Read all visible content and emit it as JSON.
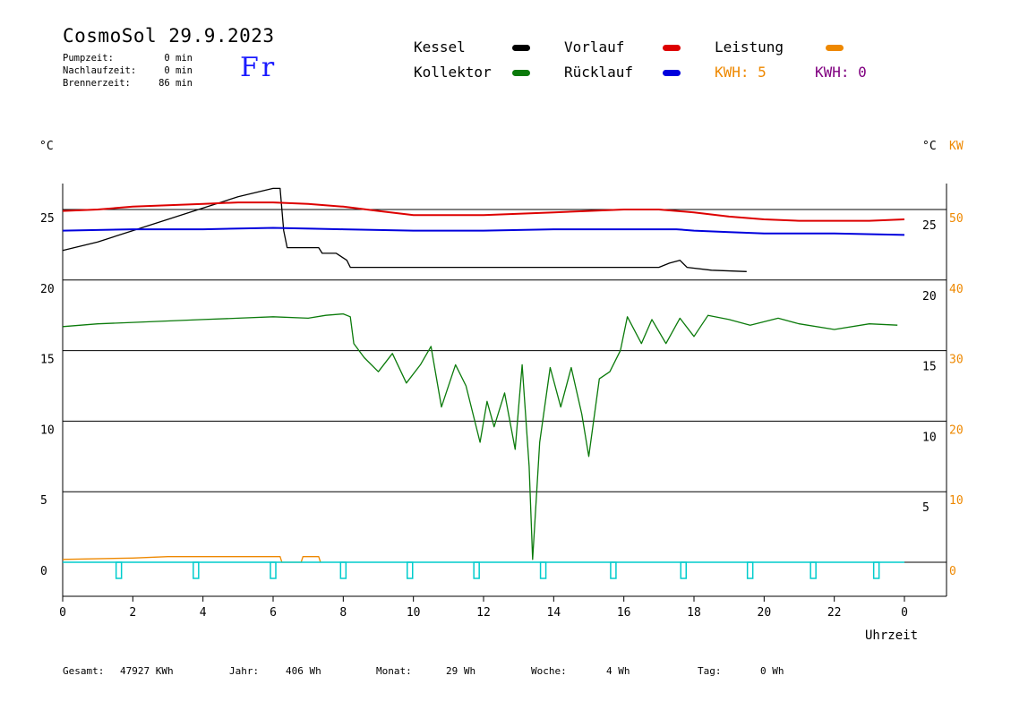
{
  "header": {
    "title": "CosmoSol 29.9.2023",
    "day": "Fr",
    "stats": [
      {
        "label": "Pumpzeit:",
        "value": "0 min"
      },
      {
        "label": "Nachlaufzeit:",
        "value": "0 min"
      },
      {
        "label": "Brennerzeit:",
        "value": "86 min"
      }
    ]
  },
  "legend": {
    "kessel": "Kessel",
    "kollektor": "Kollektor",
    "vorlauf": "Vorlauf",
    "ruecklauf": "Rücklauf",
    "leistung": "Leistung",
    "kwh1": "KWH: 5",
    "kwh2": "KWH: 0"
  },
  "colors": {
    "kessel": "#000000",
    "kollektor": "#0a7a0a",
    "vorlauf": "#dd0000",
    "ruecklauf": "#0000dd",
    "leistung": "#ee8800",
    "pump": "#00cccc",
    "kwh2": "#800080"
  },
  "axes": {
    "left_unit": "°C",
    "right_unit_c": "°C",
    "right_unit_kw": "KW",
    "xlabel": "Uhrzeit"
  },
  "footer": [
    {
      "label": "Gesamt:",
      "value": "47927 KWh"
    },
    {
      "label": "Jahr:",
      "value": "406 Wh"
    },
    {
      "label": "Monat:",
      "value": "29 Wh"
    },
    {
      "label": "Woche:",
      "value": "4 Wh"
    },
    {
      "label": "Tag:",
      "value": "0 Wh"
    }
  ],
  "chart_data": {
    "type": "line",
    "xlim": [
      0,
      24
    ],
    "ylim": [
      -2,
      27
    ],
    "x_ticks": [
      "0",
      "2",
      "4",
      "6",
      "8",
      "10",
      "12",
      "14",
      "16",
      "18",
      "20",
      "22",
      "0"
    ],
    "y_ticks_left": [
      "0",
      "5",
      "10",
      "15",
      "20",
      "25"
    ],
    "y_ticks_right_c": [
      "5",
      "10",
      "15",
      "20",
      "25"
    ],
    "y_ticks_right_kw": [
      "0",
      "10",
      "20",
      "30",
      "40",
      "50"
    ],
    "grid": true,
    "series": [
      {
        "name": "Kessel",
        "key": "kessel",
        "points": [
          [
            0,
            22.1
          ],
          [
            1,
            22.7
          ],
          [
            2,
            23.5
          ],
          [
            3,
            24.3
          ],
          [
            4,
            25.1
          ],
          [
            5,
            25.9
          ],
          [
            6,
            26.5
          ],
          [
            6.2,
            26.5
          ],
          [
            6.3,
            23.5
          ],
          [
            6.4,
            22.3
          ],
          [
            7.3,
            22.3
          ],
          [
            7.4,
            21.9
          ],
          [
            7.8,
            21.9
          ],
          [
            8.1,
            21.4
          ],
          [
            8.2,
            20.9
          ],
          [
            10,
            20.9
          ],
          [
            12,
            20.9
          ],
          [
            14,
            20.9
          ],
          [
            16,
            20.9
          ],
          [
            17,
            20.9
          ],
          [
            17.3,
            21.2
          ],
          [
            17.6,
            21.4
          ],
          [
            17.8,
            20.9
          ],
          [
            18.5,
            20.7
          ],
          [
            19.5,
            20.6
          ]
        ]
      },
      {
        "name": "Vorlauf",
        "key": "vorlauf",
        "points": [
          [
            0,
            24.9
          ],
          [
            1,
            25.0
          ],
          [
            2,
            25.2
          ],
          [
            3,
            25.3
          ],
          [
            4,
            25.4
          ],
          [
            5,
            25.5
          ],
          [
            6,
            25.5
          ],
          [
            7,
            25.4
          ],
          [
            8,
            25.2
          ],
          [
            9,
            24.9
          ],
          [
            10,
            24.6
          ],
          [
            11,
            24.6
          ],
          [
            12,
            24.6
          ],
          [
            13,
            24.7
          ],
          [
            14,
            24.8
          ],
          [
            15,
            24.9
          ],
          [
            16,
            25.0
          ],
          [
            17,
            25.0
          ],
          [
            18,
            24.8
          ],
          [
            19,
            24.5
          ],
          [
            20,
            24.3
          ],
          [
            21,
            24.2
          ],
          [
            22,
            24.2
          ],
          [
            23,
            24.2
          ],
          [
            24,
            24.3
          ]
        ]
      },
      {
        "name": "Rücklauf",
        "key": "ruecklauf",
        "points": [
          [
            0,
            23.5
          ],
          [
            2,
            23.6
          ],
          [
            4,
            23.6
          ],
          [
            6,
            23.7
          ],
          [
            8,
            23.6
          ],
          [
            10,
            23.5
          ],
          [
            12,
            23.5
          ],
          [
            14,
            23.6
          ],
          [
            16,
            23.6
          ],
          [
            17.5,
            23.6
          ],
          [
            18,
            23.5
          ],
          [
            19,
            23.4
          ],
          [
            20,
            23.3
          ],
          [
            22,
            23.3
          ],
          [
            24,
            23.2
          ]
        ]
      },
      {
        "name": "Kollektor",
        "key": "kollektor",
        "points": [
          [
            0,
            16.7
          ],
          [
            1,
            16.9
          ],
          [
            2,
            17.0
          ],
          [
            3,
            17.1
          ],
          [
            4,
            17.2
          ],
          [
            5,
            17.3
          ],
          [
            6,
            17.4
          ],
          [
            7,
            17.3
          ],
          [
            7.5,
            17.5
          ],
          [
            8.0,
            17.6
          ],
          [
            8.2,
            17.4
          ],
          [
            8.3,
            15.5
          ],
          [
            8.6,
            14.5
          ],
          [
            9.0,
            13.5
          ],
          [
            9.4,
            14.8
          ],
          [
            9.8,
            12.7
          ],
          [
            10.2,
            14.0
          ],
          [
            10.5,
            15.3
          ],
          [
            10.8,
            11.0
          ],
          [
            11.2,
            14.0
          ],
          [
            11.5,
            12.5
          ],
          [
            11.9,
            8.5
          ],
          [
            12.1,
            11.4
          ],
          [
            12.3,
            9.6
          ],
          [
            12.6,
            12.0
          ],
          [
            12.9,
            8.0
          ],
          [
            13.1,
            14.0
          ],
          [
            13.3,
            6.8
          ],
          [
            13.4,
            0.2
          ],
          [
            13.6,
            8.5
          ],
          [
            13.9,
            13.8
          ],
          [
            14.2,
            11.0
          ],
          [
            14.5,
            13.8
          ],
          [
            14.8,
            10.5
          ],
          [
            15.0,
            7.5
          ],
          [
            15.3,
            13.0
          ],
          [
            15.6,
            13.5
          ],
          [
            15.9,
            15.0
          ],
          [
            16.1,
            17.4
          ],
          [
            16.5,
            15.5
          ],
          [
            16.8,
            17.2
          ],
          [
            17.2,
            15.5
          ],
          [
            17.6,
            17.3
          ],
          [
            18.0,
            16.0
          ],
          [
            18.4,
            17.5
          ],
          [
            19.0,
            17.2
          ],
          [
            19.6,
            16.8
          ],
          [
            20.4,
            17.3
          ],
          [
            21.0,
            16.9
          ],
          [
            22.0,
            16.5
          ],
          [
            23.0,
            16.9
          ],
          [
            23.8,
            16.8
          ]
        ]
      },
      {
        "name": "Leistung",
        "key": "leistung",
        "points": [
          [
            0,
            0.2
          ],
          [
            2,
            0.3
          ],
          [
            3,
            0.4
          ],
          [
            4,
            0.4
          ],
          [
            6,
            0.4
          ],
          [
            6.2,
            0.4
          ],
          [
            6.25,
            0
          ],
          [
            6.8,
            0
          ],
          [
            6.85,
            0.4
          ],
          [
            7.3,
            0.4
          ],
          [
            7.35,
            0
          ]
        ]
      }
    ],
    "pump_marks_hours": [
      1.6,
      3.8,
      6.0,
      8.0,
      9.9,
      11.8,
      13.7,
      15.7,
      17.7,
      19.6,
      21.4,
      23.2
    ]
  }
}
